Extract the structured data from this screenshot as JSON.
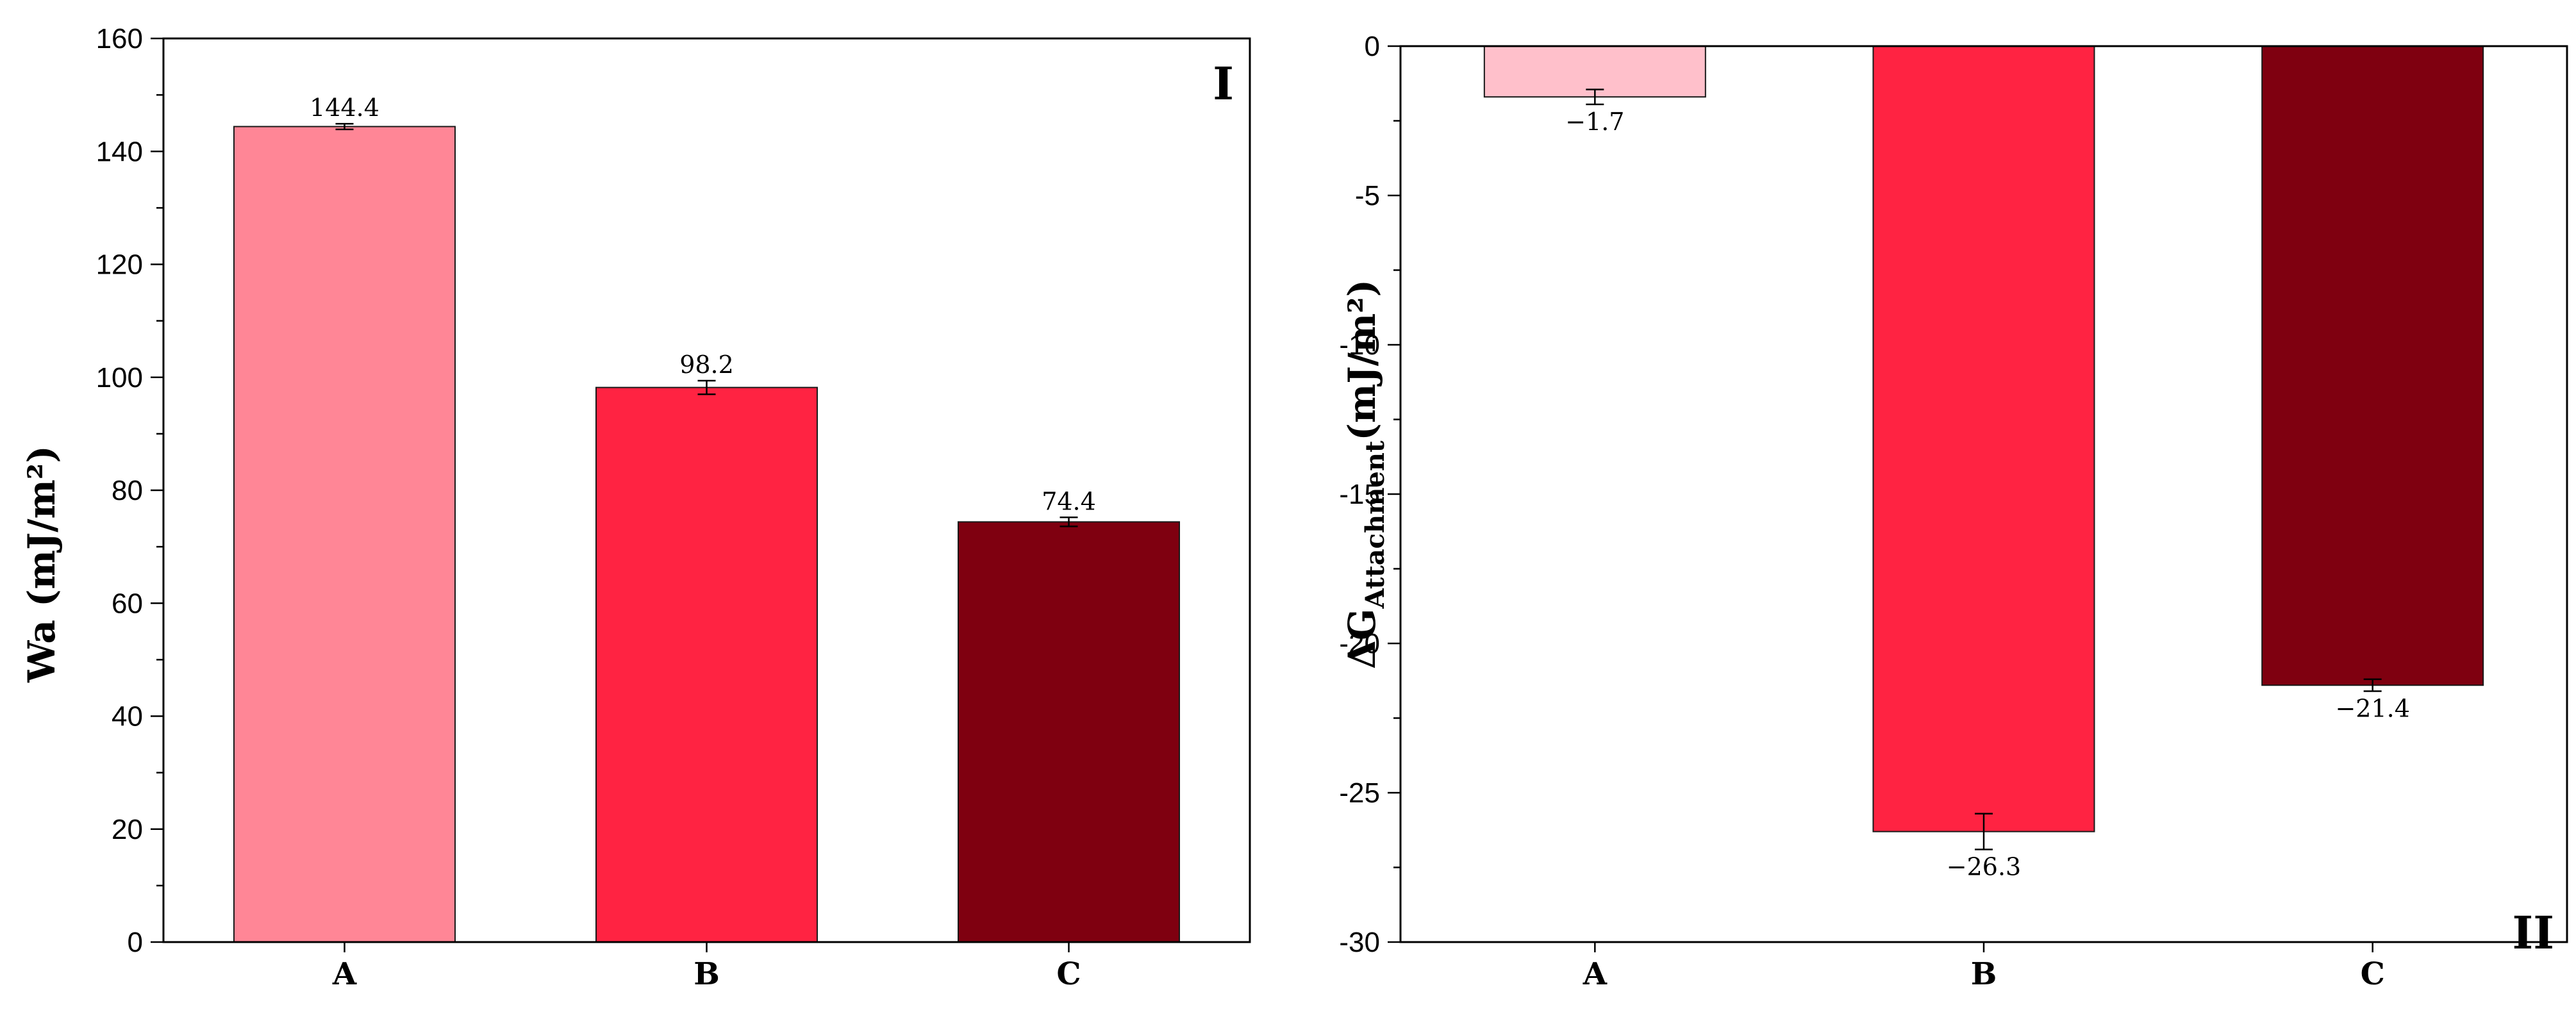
{
  "chart_data": [
    {
      "type": "bar",
      "panel_label": "I",
      "categories": [
        "A",
        "B",
        "C"
      ],
      "values": [
        144.4,
        98.2,
        74.4
      ],
      "errors": [
        0.5,
        1.2,
        0.8
      ],
      "data_labels": [
        "144.4",
        "98.2",
        "74.4"
      ],
      "colors": [
        "#FF8696",
        "#FF2342",
        "#7F0010"
      ],
      "ylabel": "Wa (mJ/m²)",
      "ylim": [
        0,
        160
      ],
      "yticks": [
        0,
        20,
        40,
        60,
        80,
        100,
        120,
        140,
        160
      ],
      "ytick_labels": [
        "0",
        "20",
        "40",
        "60",
        "80",
        "100",
        "120",
        "140",
        "160"
      ],
      "grid": false
    },
    {
      "type": "bar",
      "panel_label": "II",
      "categories": [
        "A",
        "B",
        "C"
      ],
      "values": [
        -1.7,
        -26.3,
        -21.4
      ],
      "errors": [
        0.25,
        0.6,
        0.2
      ],
      "data_labels": [
        "−1.7",
        "−26.3",
        "−21.4"
      ],
      "colors": [
        "#FFC0CB",
        "#FF2342",
        "#7F0010"
      ],
      "ylabel_main": "ΔG",
      "ylabel_sub": "Attachment",
      "ylabel_tail": "(mJ/m²)",
      "ylim": [
        -30,
        0
      ],
      "yticks": [
        0,
        -5,
        -10,
        -15,
        -20,
        -25,
        -30
      ],
      "ytick_labels": [
        "0",
        "-5",
        "-10",
        "-15",
        "-20",
        "-25",
        "-30"
      ],
      "grid": false
    }
  ]
}
